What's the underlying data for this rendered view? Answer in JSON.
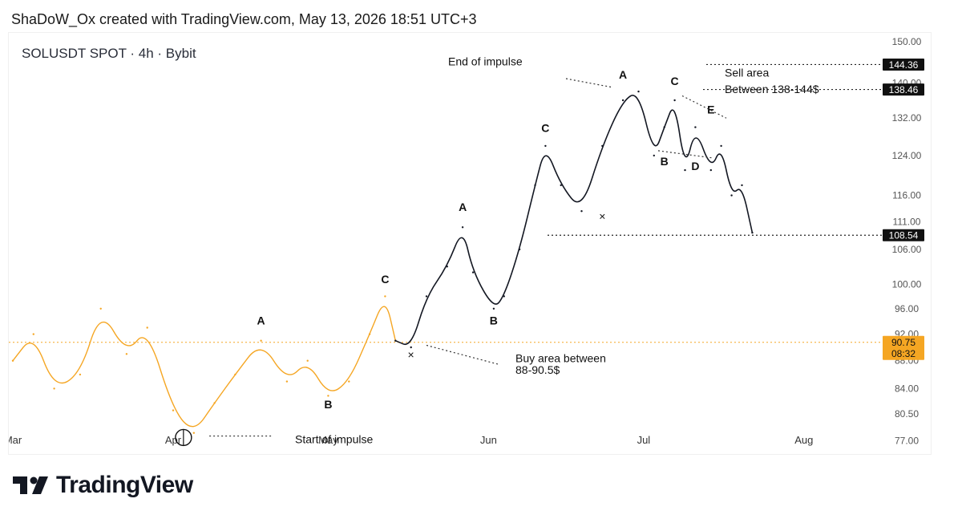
{
  "header": {
    "caption": "ShaDoW_Ox created with TradingView.com, May 13, 2026 18:51 UTC+3"
  },
  "chart_data": {
    "type": "line",
    "symbol_title": "SOLUSDT SPOT · 4h · Bybit",
    "x_ticks": [
      "Mar",
      "Apr",
      "May",
      "Jun",
      "Jul",
      "Aug"
    ],
    "y_ticks": [
      "150.00",
      "140.00",
      "132.00",
      "124.00",
      "116.00",
      "111.00",
      "106.00",
      "100.00",
      "96.00",
      "92.00",
      "88.00",
      "84.00",
      "80.50",
      "77.00"
    ],
    "ylim": [
      75.3,
      152.2
    ],
    "y_scale": "log",
    "grid": false,
    "series": [
      {
        "color": "#f5a623",
        "x": [
          "Mar 1",
          "Mar 5",
          "Mar 9",
          "Mar 14",
          "Mar 18",
          "Mar 23",
          "Mar 27",
          "Apr 1",
          "Apr 5",
          "Apr 9",
          "Apr 13",
          "Apr 18",
          "Apr 23",
          "Apr 27",
          "May 1",
          "May 5",
          "May 9",
          "May 12",
          "May 14"
        ],
        "values": [
          88,
          92,
          84,
          86,
          96,
          89,
          93,
          81,
          78,
          82,
          86,
          91,
          85,
          88,
          83,
          85,
          92,
          98,
          91
        ]
      },
      {
        "color": "#131722",
        "x": [
          "May 14",
          "May 17",
          "May 20",
          "May 24",
          "May 27",
          "May 29",
          "Jun 2",
          "Jun 4",
          "Jun 7",
          "Jun 10",
          "Jun 12",
          "Jun 15",
          "Jun 19",
          "Jun 23",
          "Jun 27",
          "Jun 30",
          "Jul 3",
          "Jul 5",
          "Jul 7",
          "Jul 9",
          "Jul 11",
          "Jul 14",
          "Jul 16",
          "Jul 18",
          "Jul 20",
          "Jul 22"
        ],
        "values": [
          91,
          90,
          98,
          103,
          110,
          102,
          96,
          98,
          106,
          118,
          126,
          118,
          113,
          126,
          136,
          138,
          124,
          130,
          136,
          121,
          130,
          121,
          126,
          116,
          118,
          109
        ]
      }
    ],
    "price_tags": [
      {
        "label": "144.36",
        "value": 144.36,
        "style": "dark"
      },
      {
        "label": "138.46",
        "value": 138.46,
        "style": "dark"
      },
      {
        "label": "108.54",
        "value": 108.54,
        "style": "dark"
      },
      {
        "label": "90.75",
        "sublabel": "08:32",
        "value": 90.75,
        "style": "yellow"
      }
    ],
    "wave_labels": [
      {
        "text": "A",
        "x": "Apr 18",
        "value": 93.5
      },
      {
        "text": "B",
        "x": "May 1",
        "value": 81.3
      },
      {
        "text": "C",
        "x": "May 12",
        "value": 100.2
      },
      {
        "text": "A",
        "x": "May 27",
        "value": 113
      },
      {
        "text": "B",
        "x": "Jun 2",
        "value": 93.5
      },
      {
        "text": "C",
        "x": "Jun 12",
        "value": 129
      },
      {
        "text": "A",
        "x": "Jun 27",
        "value": 141
      },
      {
        "text": "B",
        "x": "Jul 5",
        "value": 122
      },
      {
        "text": "C",
        "x": "Jul 7",
        "value": 139.5
      },
      {
        "text": "D",
        "x": "Jul 11",
        "value": 121
      },
      {
        "text": "E",
        "x": "Jul 14",
        "value": 133
      }
    ],
    "annotations": {
      "end_of_impulse": "End of impulse",
      "start_of_impulse": "Start of impulse",
      "buy_area_line1": "Buy area between",
      "buy_area_line2": "88-90.5$",
      "sell_area_line1": "Sell area",
      "sell_area_line2": "Between 138-144$"
    }
  },
  "footer": {
    "brand": "TradingView"
  }
}
